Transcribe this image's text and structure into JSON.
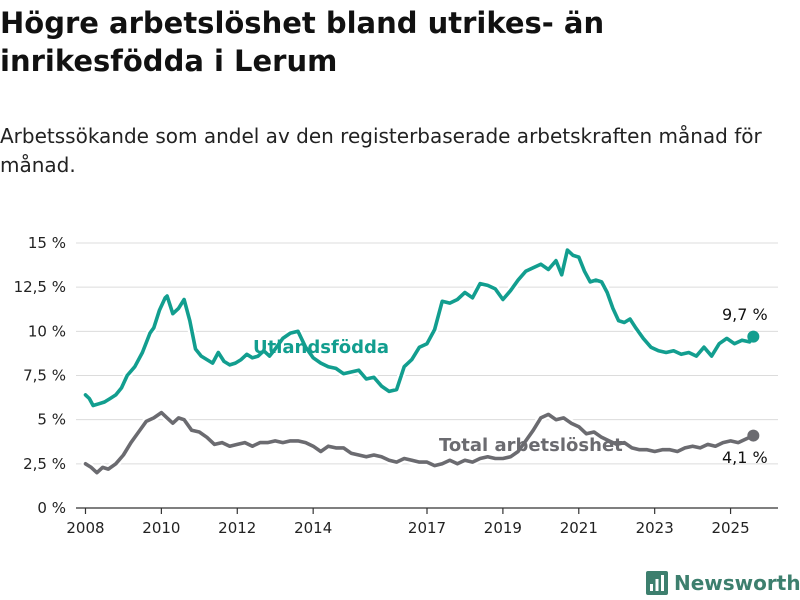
{
  "title": "Högre arbetslöshet bland utrikes- än inrikesfödda i Lerum",
  "subtitle": "Arbetssökande som andel av den registerbaserade arbetskraften månad för månad.",
  "brand": {
    "name": "Newsworthy",
    "logo_icon": "bar-chart-logo-icon",
    "color": "#3d7f6e"
  },
  "chart_data": {
    "type": "line",
    "title": "Högre arbetslöshet bland utrikes- än inrikesfödda i Lerum",
    "subtitle": "Arbetssökande som andel av den registerbaserade arbetskraften månad för månad.",
    "xlim": [
      2007.75,
      2026.25
    ],
    "ylim": [
      0,
      15
    ],
    "y_ticks": [
      0,
      2.5,
      5,
      7.5,
      10,
      12.5,
      15
    ],
    "y_tick_labels": [
      "0 %",
      "2,5 %",
      "5 %",
      "7,5 %",
      "10 %",
      "12,5 %",
      "15 %"
    ],
    "x_ticks": [
      2008,
      2010,
      2012,
      2014,
      2017,
      2019,
      2021,
      2023,
      2025
    ],
    "x_tick_labels": [
      "2008",
      "2010",
      "2012",
      "2014",
      "2017",
      "2019",
      "2021",
      "2023",
      "2025"
    ],
    "grid": "horizontal",
    "series": [
      {
        "name": "Utlandsfödda",
        "color": "#129e8f",
        "end_label": "9,7 %",
        "x": [
          2008.0,
          2008.1,
          2008.2,
          2008.35,
          2008.5,
          2008.65,
          2008.8,
          2008.95,
          2009.1,
          2009.3,
          2009.5,
          2009.7,
          2009.8,
          2009.95,
          2010.1,
          2010.15,
          2010.3,
          2010.45,
          2010.6,
          2010.75,
          2010.9,
          2011.05,
          2011.2,
          2011.35,
          2011.5,
          2011.65,
          2011.8,
          2011.95,
          2012.1,
          2012.25,
          2012.4,
          2012.55,
          2012.7,
          2012.85,
          2013.0,
          2013.2,
          2013.4,
          2013.6,
          2013.8,
          2014.0,
          2014.2,
          2014.4,
          2014.6,
          2014.8,
          2015.0,
          2015.2,
          2015.4,
          2015.6,
          2015.8,
          2016.0,
          2016.2,
          2016.4,
          2016.6,
          2016.8,
          2017.0,
          2017.2,
          2017.4,
          2017.6,
          2017.8,
          2018.0,
          2018.2,
          2018.4,
          2018.6,
          2018.8,
          2019.0,
          2019.2,
          2019.4,
          2019.6,
          2019.8,
          2020.0,
          2020.2,
          2020.4,
          2020.55,
          2020.7,
          2020.85,
          2021.0,
          2021.15,
          2021.3,
          2021.45,
          2021.6,
          2021.75,
          2021.9,
          2022.05,
          2022.2,
          2022.35,
          2022.5,
          2022.7,
          2022.9,
          2023.1,
          2023.3,
          2023.5,
          2023.7,
          2023.9,
          2024.1,
          2024.3,
          2024.5,
          2024.7,
          2024.9,
          2025.1,
          2025.3,
          2025.5,
          2025.6
        ],
        "values": [
          6.4,
          6.2,
          5.8,
          5.9,
          6.0,
          6.2,
          6.4,
          6.8,
          7.5,
          8.0,
          8.8,
          9.9,
          10.2,
          11.2,
          11.9,
          12.0,
          11.0,
          11.3,
          11.8,
          10.6,
          9.0,
          8.6,
          8.4,
          8.2,
          8.8,
          8.3,
          8.1,
          8.2,
          8.4,
          8.7,
          8.5,
          8.6,
          8.9,
          8.6,
          9.0,
          9.6,
          9.9,
          10.0,
          9.1,
          8.5,
          8.2,
          8.0,
          7.9,
          7.6,
          7.7,
          7.8,
          7.3,
          7.4,
          6.9,
          6.6,
          6.7,
          8.0,
          8.4,
          9.1,
          9.3,
          10.1,
          11.7,
          11.6,
          11.8,
          12.2,
          11.9,
          12.7,
          12.6,
          12.4,
          11.8,
          12.3,
          12.9,
          13.4,
          13.6,
          13.8,
          13.5,
          14.0,
          13.2,
          14.6,
          14.3,
          14.2,
          13.4,
          12.8,
          12.9,
          12.8,
          12.2,
          11.3,
          10.6,
          10.5,
          10.7,
          10.2,
          9.6,
          9.1,
          8.9,
          8.8,
          8.9,
          8.7,
          8.8,
          8.6,
          9.1,
          8.6,
          9.3,
          9.6,
          9.3,
          9.5,
          9.4,
          9.7
        ]
      },
      {
        "name": "Total arbetslöshet",
        "color": "#6b6b70",
        "end_label": "4,1 %",
        "x": [
          2008.0,
          2008.15,
          2008.3,
          2008.45,
          2008.6,
          2008.8,
          2009.0,
          2009.2,
          2009.4,
          2009.6,
          2009.8,
          2010.0,
          2010.15,
          2010.3,
          2010.45,
          2010.6,
          2010.8,
          2011.0,
          2011.2,
          2011.4,
          2011.6,
          2011.8,
          2012.0,
          2012.2,
          2012.4,
          2012.6,
          2012.8,
          2013.0,
          2013.2,
          2013.4,
          2013.6,
          2013.8,
          2014.0,
          2014.2,
          2014.4,
          2014.6,
          2014.8,
          2015.0,
          2015.2,
          2015.4,
          2015.6,
          2015.8,
          2016.0,
          2016.2,
          2016.4,
          2016.6,
          2016.8,
          2017.0,
          2017.2,
          2017.4,
          2017.6,
          2017.8,
          2018.0,
          2018.2,
          2018.4,
          2018.6,
          2018.8,
          2019.0,
          2019.2,
          2019.4,
          2019.6,
          2019.8,
          2020.0,
          2020.2,
          2020.4,
          2020.6,
          2020.8,
          2021.0,
          2021.2,
          2021.4,
          2021.6,
          2021.8,
          2022.0,
          2022.2,
          2022.4,
          2022.6,
          2022.8,
          2023.0,
          2023.2,
          2023.4,
          2023.6,
          2023.8,
          2024.0,
          2024.2,
          2024.4,
          2024.6,
          2024.8,
          2025.0,
          2025.2,
          2025.4,
          2025.6
        ],
        "values": [
          2.5,
          2.3,
          2.0,
          2.3,
          2.2,
          2.5,
          3.0,
          3.7,
          4.3,
          4.9,
          5.1,
          5.4,
          5.1,
          4.8,
          5.1,
          5.0,
          4.4,
          4.3,
          4.0,
          3.6,
          3.7,
          3.5,
          3.6,
          3.7,
          3.5,
          3.7,
          3.7,
          3.8,
          3.7,
          3.8,
          3.8,
          3.7,
          3.5,
          3.2,
          3.5,
          3.4,
          3.4,
          3.1,
          3.0,
          2.9,
          3.0,
          2.9,
          2.7,
          2.6,
          2.8,
          2.7,
          2.6,
          2.6,
          2.4,
          2.5,
          2.7,
          2.5,
          2.7,
          2.6,
          2.8,
          2.9,
          2.8,
          2.8,
          2.9,
          3.2,
          3.8,
          4.4,
          5.1,
          5.3,
          5.0,
          5.1,
          4.8,
          4.6,
          4.2,
          4.3,
          4.0,
          3.8,
          3.6,
          3.7,
          3.4,
          3.3,
          3.3,
          3.2,
          3.3,
          3.3,
          3.2,
          3.4,
          3.5,
          3.4,
          3.6,
          3.5,
          3.7,
          3.8,
          3.7,
          3.9,
          4.1
        ]
      }
    ]
  }
}
